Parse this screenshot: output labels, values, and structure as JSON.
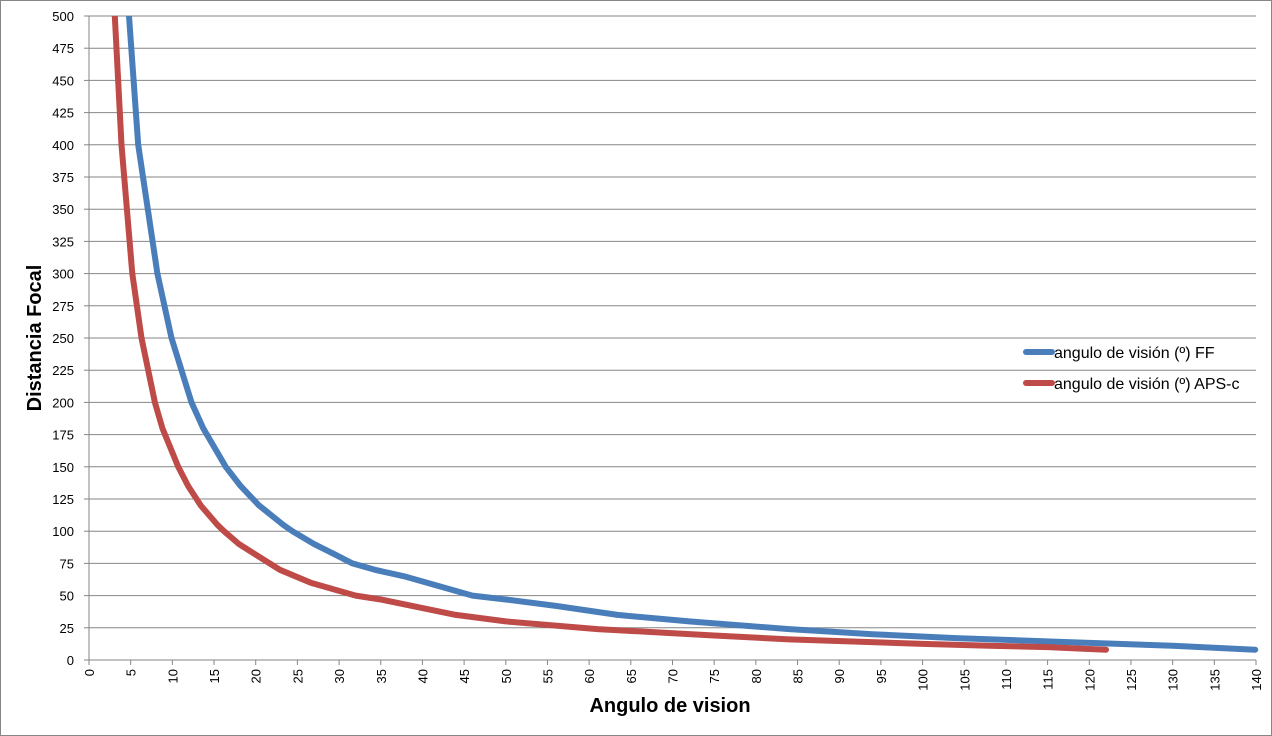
{
  "chart_data": {
    "type": "line",
    "title": "",
    "xlabel": "Angulo de vision",
    "ylabel": "Distancia Focal",
    "xlim": [
      0,
      140
    ],
    "ylim": [
      0,
      500
    ],
    "x_ticks": [
      0,
      5,
      10,
      15,
      20,
      25,
      30,
      35,
      40,
      45,
      50,
      55,
      60,
      65,
      70,
      75,
      80,
      85,
      90,
      95,
      100,
      105,
      110,
      115,
      120,
      125,
      130,
      135,
      140
    ],
    "y_ticks": [
      0,
      25,
      50,
      75,
      100,
      125,
      150,
      175,
      200,
      225,
      250,
      275,
      300,
      325,
      350,
      375,
      400,
      425,
      450,
      475,
      500
    ],
    "grid": "horizontal",
    "legend_position": "right",
    "series": [
      {
        "name": "angulo de visión (º) FF",
        "color": "#4a7ebb",
        "points": [
          [
            4.8,
            500
          ],
          [
            5.9,
            400
          ],
          [
            8.2,
            300
          ],
          [
            9.9,
            250
          ],
          [
            12.3,
            200
          ],
          [
            13.7,
            180
          ],
          [
            16.4,
            150
          ],
          [
            18.2,
            135
          ],
          [
            20.4,
            120
          ],
          [
            23.3,
            105
          ],
          [
            24.4,
            100
          ],
          [
            27,
            90
          ],
          [
            29.5,
            82
          ],
          [
            31.6,
            75
          ],
          [
            34.3,
            70
          ],
          [
            37.8,
            65
          ],
          [
            46,
            50
          ],
          [
            50,
            47
          ],
          [
            56,
            42
          ],
          [
            63.4,
            35
          ],
          [
            72,
            30
          ],
          [
            84,
            24
          ],
          [
            94,
            20
          ],
          [
            104,
            17
          ],
          [
            117,
            14
          ],
          [
            130,
            11
          ],
          [
            139.9,
            8
          ]
        ]
      },
      {
        "name": "angulo de visión (º) APS-c",
        "color": "#be4b48",
        "points": [
          [
            3.1,
            500
          ],
          [
            3.9,
            400
          ],
          [
            5.2,
            300
          ],
          [
            6.3,
            250
          ],
          [
            7.9,
            200
          ],
          [
            8.8,
            180
          ],
          [
            10.7,
            150
          ],
          [
            11.9,
            135
          ],
          [
            13.4,
            120
          ],
          [
            15.4,
            105
          ],
          [
            16.2,
            100
          ],
          [
            18,
            90
          ],
          [
            22.9,
            70
          ],
          [
            26.6,
            60
          ],
          [
            32,
            50
          ],
          [
            35,
            47
          ],
          [
            44,
            35
          ],
          [
            50,
            30
          ],
          [
            61,
            24
          ],
          [
            75,
            19
          ],
          [
            84,
            16
          ],
          [
            100,
            12.5
          ],
          [
            108,
            11
          ],
          [
            115,
            10
          ],
          [
            122,
            8
          ]
        ]
      }
    ]
  }
}
